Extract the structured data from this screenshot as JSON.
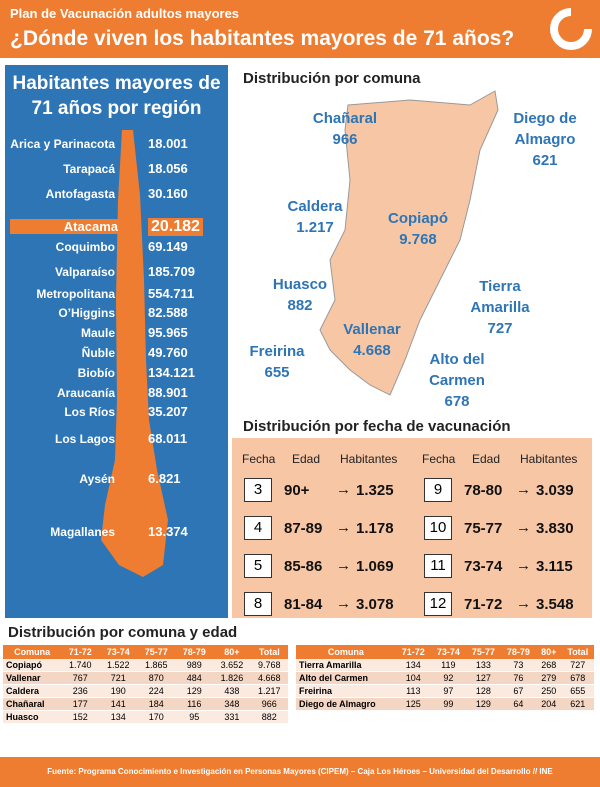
{
  "header": {
    "subtitle": "Plan de Vacunación adultos mayores",
    "title": "¿Dónde viven los habitantes mayores de 71 años?"
  },
  "regions": {
    "title": "Habitantes mayores de 71 años por región",
    "rows": [
      [
        "Arica y Parinacota",
        "18.001"
      ],
      [
        "Tarapacá",
        "18.056"
      ],
      [
        "Antofagasta",
        "30.160"
      ],
      [
        "Atacama",
        "20.182"
      ],
      [
        "Coquimbo",
        "69.149"
      ],
      [
        "Valparaíso",
        "185.709"
      ],
      [
        "Metropolitana",
        "554.711"
      ],
      [
        "O’Higgins",
        "82.588"
      ],
      [
        "Maule",
        "95.965"
      ],
      [
        "Ñuble",
        "49.760"
      ],
      [
        "Biobío",
        "134.121"
      ],
      [
        "Araucanía",
        "88.901"
      ],
      [
        "Los Ríos",
        "35.207"
      ],
      [
        "Los Lagos",
        "68.011"
      ],
      [
        "Aysén",
        "6.821"
      ],
      [
        "Magallanes",
        "13.374"
      ]
    ]
  },
  "comunas": {
    "title": "Distribución por comuna",
    "labels": [
      [
        "Chañaral",
        "966"
      ],
      [
        "Diego de Almagro",
        "621"
      ],
      [
        "Caldera",
        "1.217"
      ],
      [
        "Copiapó",
        "9.768"
      ],
      [
        "Huasco",
        "882"
      ],
      [
        "Tierra Amarilla",
        "727"
      ],
      [
        "Vallenar",
        "4.668"
      ],
      [
        "Freirina",
        "655"
      ],
      [
        "Alto del Carmen",
        "678"
      ]
    ]
  },
  "vaccination": {
    "title": "Distribución por fecha de vacunación",
    "headers": [
      "Fecha",
      "Edad",
      "Habitantes"
    ],
    "rows": [
      [
        3,
        "90+",
        "1.325"
      ],
      [
        4,
        "87-89",
        "1.178"
      ],
      [
        5,
        "85-86",
        "1.069"
      ],
      [
        8,
        "81-84",
        "3.078"
      ],
      [
        9,
        "78-80",
        "3.039"
      ],
      [
        10,
        "75-77",
        "3.830"
      ],
      [
        11,
        "73-74",
        "3.115"
      ],
      [
        12,
        "71-72",
        "3.548"
      ]
    ]
  },
  "tables": {
    "title": "Distribución por comuna y edad",
    "columns": [
      "Comuna",
      "71-72",
      "73-74",
      "75-77",
      "78-79",
      "80+",
      "Total"
    ],
    "left": [
      [
        "Copiapó",
        "1.740",
        "1.522",
        "1.865",
        "989",
        "3.652",
        "9.768"
      ],
      [
        "Vallenar",
        "767",
        "721",
        "870",
        "484",
        "1.826",
        "4.668"
      ],
      [
        "Caldera",
        "236",
        "190",
        "224",
        "129",
        "438",
        "1.217"
      ],
      [
        "Chañaral",
        "177",
        "141",
        "184",
        "116",
        "348",
        "966"
      ],
      [
        "Huasco",
        "152",
        "134",
        "170",
        "95",
        "331",
        "882"
      ]
    ],
    "right": [
      [
        "Tierra Amarilla",
        "134",
        "119",
        "133",
        "73",
        "268",
        "727"
      ],
      [
        "Alto del Carmen",
        "104",
        "92",
        "127",
        "76",
        "279",
        "678"
      ],
      [
        "Freirina",
        "113",
        "97",
        "128",
        "67",
        "250",
        "655"
      ],
      [
        "Diego de Almagro",
        "125",
        "99",
        "129",
        "64",
        "204",
        "621"
      ]
    ]
  },
  "footer": "Fuente: Programa Conocimiento e Investigación en Personas Mayores (CIPEM) – Caja Los Héroes – Universidad del Desarrollo // INE"
}
